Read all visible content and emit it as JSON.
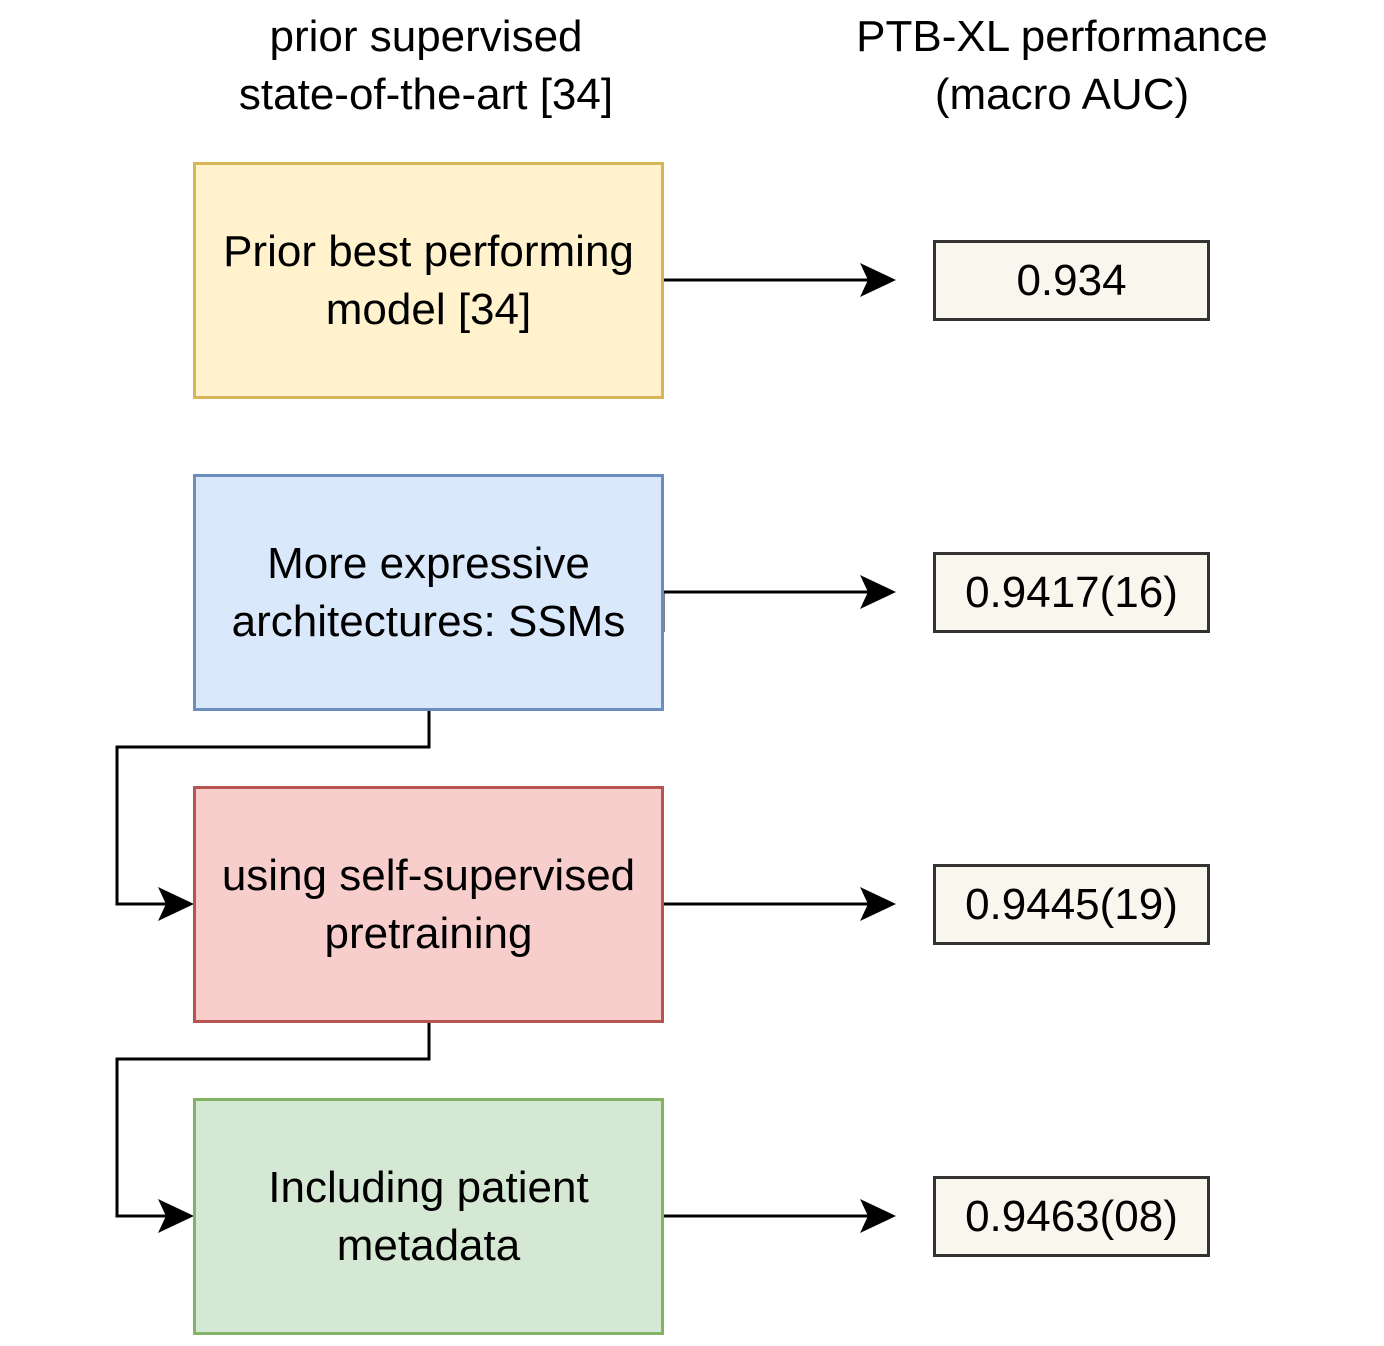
{
  "headings": {
    "left": [
      "prior supervised",
      "state-of-the-art [34]"
    ],
    "right": [
      "PTB-XL performance",
      "(macro AUC)"
    ]
  },
  "steps": [
    {
      "lines": [
        "Prior best performing",
        "model [34]"
      ],
      "color": "yellow"
    },
    {
      "lines": [
        "More expressive",
        "architectures: SSMs"
      ],
      "color": "blue"
    },
    {
      "lines": [
        "using self-supervised",
        "pretraining"
      ],
      "color": "red"
    },
    {
      "lines": [
        "Including patient",
        "metadata"
      ],
      "color": "green"
    }
  ],
  "results": [
    "0.934",
    "0.9417(16)",
    "0.9445(19)",
    "0.9463(08)"
  ],
  "colors": {
    "yellow_fill": "#fff2cc",
    "yellow_border": "#d6b656",
    "blue_fill": "#dae8fc",
    "blue_border": "#6c8ebf",
    "red_fill": "#f8cecc",
    "red_border": "#b85450",
    "green_fill": "#d5e8d4",
    "green_border": "#82b366",
    "result_fill": "#f9f7ed",
    "result_border": "#333333"
  }
}
